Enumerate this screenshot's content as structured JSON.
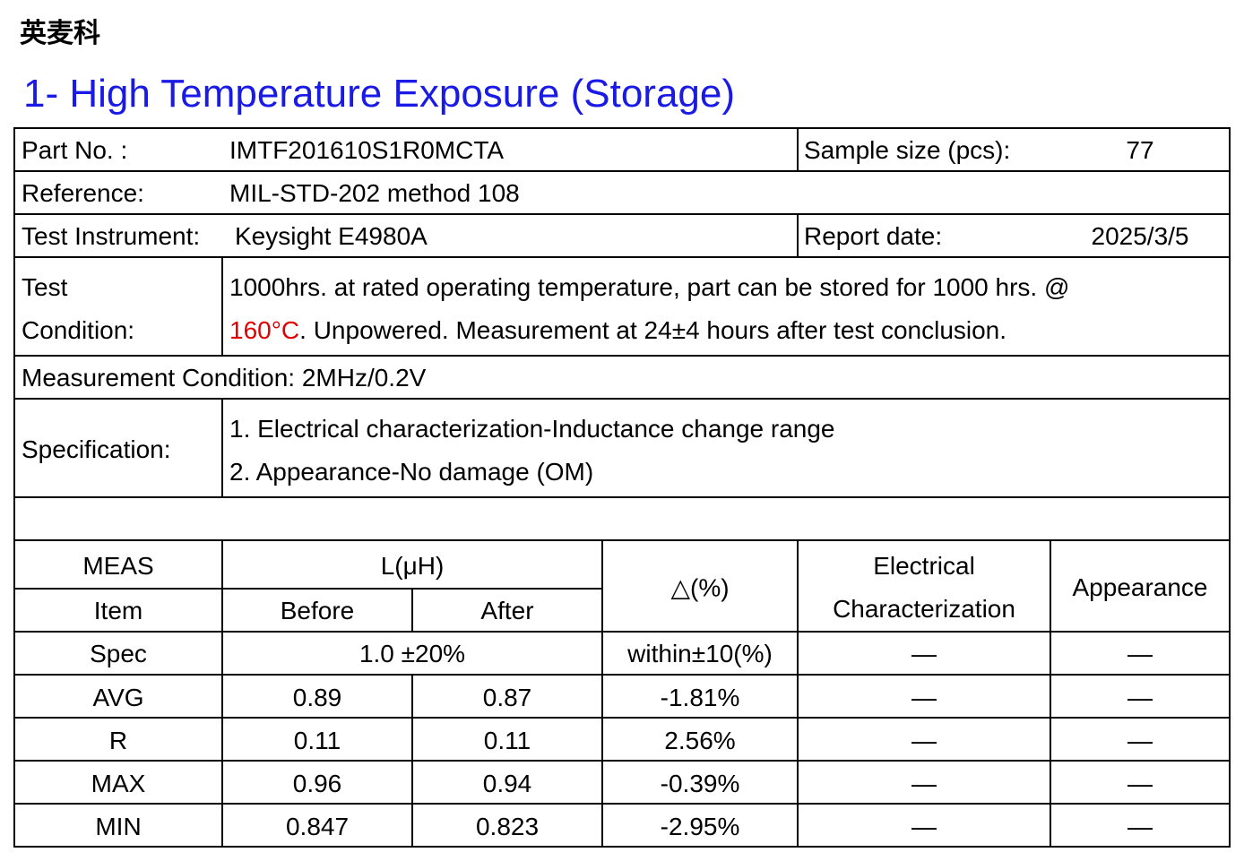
{
  "company": "英麦科",
  "title": "1- High Temperature Exposure (Storage)",
  "info": {
    "part_no_label": "Part No. :",
    "part_no": "IMTF201610S1R0MCTA",
    "sample_size_label": "Sample size (pcs):",
    "sample_size": "77",
    "reference_label": "Reference:",
    "reference": "MIL-STD-202 method 108",
    "instrument_label": "Test Instrument:",
    "instrument": "Keysight E4980A",
    "report_date_label": "Report date:",
    "report_date": "2025/3/5",
    "test_condition_label": [
      "Test",
      "Condition:"
    ],
    "test_condition": {
      "line1": "1000hrs. at rated operating temperature, part can be stored for 1000 hrs. @",
      "temperature": "160°C",
      "line2": ". Unpowered. Measurement at 24±4 hours after test conclusion."
    },
    "measurement_condition": "Measurement Condition: 2MHz/0.2V",
    "specification_label": "Specification:",
    "specification": [
      "1. Electrical characterization-Inductance change range",
      "2. Appearance-No damage (OM)"
    ]
  },
  "table": {
    "header": {
      "meas": "MEAS",
      "item": "Item",
      "l": "L(μH)",
      "before": "Before",
      "after": "After",
      "delta": "△(%)",
      "electrical": [
        "Electrical",
        "Characterization"
      ],
      "appearance": "Appearance"
    },
    "spec_row": [
      "Spec",
      "1.0 ±20%",
      "within±10(%)",
      "—",
      "—"
    ],
    "rows": [
      [
        "AVG",
        "0.89",
        "0.87",
        "-1.81%",
        "—",
        "—"
      ],
      [
        "R",
        "0.11",
        "0.11",
        "2.56%",
        "—",
        "—"
      ],
      [
        "MAX",
        "0.96",
        "0.94",
        "-0.39%",
        "—",
        "—"
      ],
      [
        "MIN",
        "0.847",
        "0.823",
        "-2.95%",
        "—",
        "—"
      ]
    ]
  }
}
